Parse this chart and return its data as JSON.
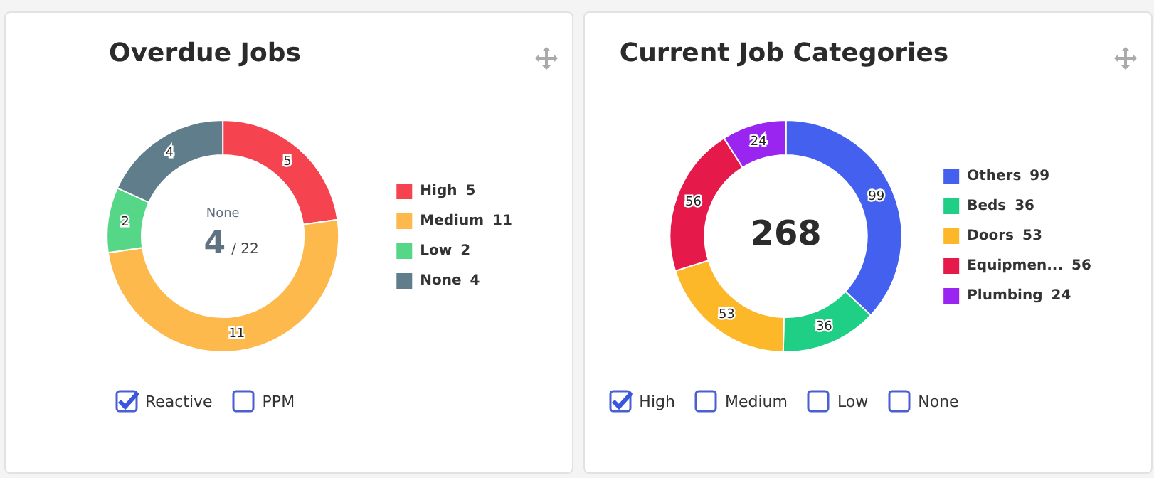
{
  "chart_data": [
    {
      "type": "donut",
      "title": "Overdue Jobs",
      "categories": [
        "High",
        "Medium",
        "Low",
        "None"
      ],
      "values": [
        5,
        11,
        2,
        4
      ],
      "value_labels": [
        "5",
        "11",
        "2",
        "4"
      ],
      "colors": [
        "#f5434f",
        "#fdb94b",
        "#56d687",
        "#607d8b"
      ],
      "legend": "right",
      "annotations": [
        "None",
        "4",
        "/ 22",
        "Reactive",
        "PPM"
      ]
    },
    {
      "type": "donut",
      "title": "Current Job Categories",
      "categories": [
        "Others",
        "Beds",
        "Doors",
        "Equipmen...",
        "Plumbing"
      ],
      "values": [
        99,
        36,
        53,
        56,
        24
      ],
      "value_labels": [
        "99",
        "36",
        "53",
        "56",
        "24"
      ],
      "colors": [
        "#4361ee",
        "#1fcf85",
        "#fdb829",
        "#e5194a",
        "#9a24f0"
      ],
      "legend": "right",
      "annotations": [
        "268",
        "High",
        "Medium",
        "Low",
        "None"
      ]
    }
  ]
}
